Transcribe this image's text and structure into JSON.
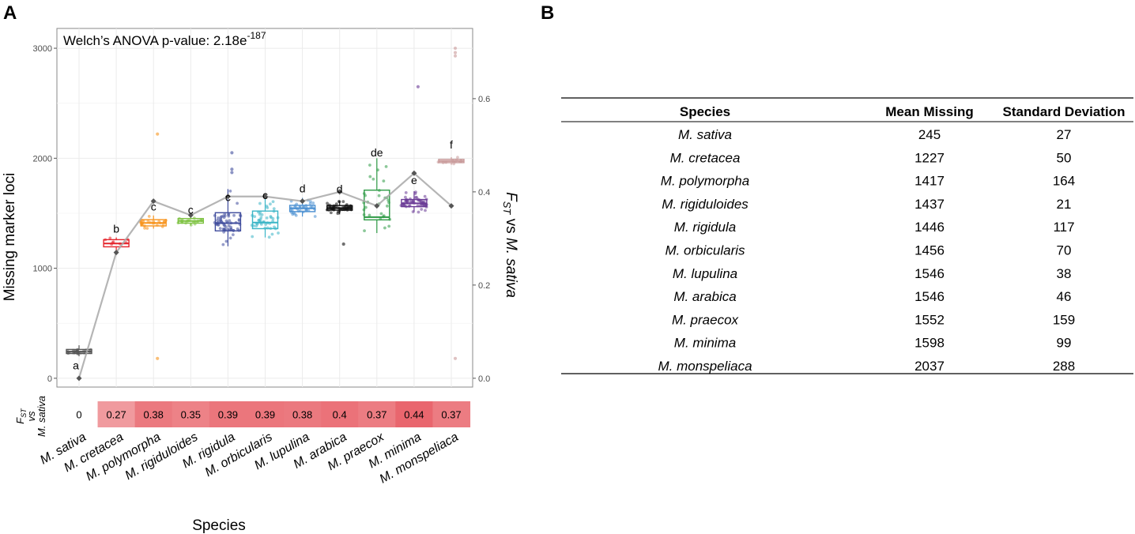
{
  "panel_a_label": "A",
  "panel_b_label": "B",
  "chart_data": [
    {
      "type": "box",
      "annotation_text": "Welch’s ANOVA p-value: 2.18e",
      "annotation_exponent": "-187",
      "xlabel": "Species",
      "ylabel": "Missing marker loci",
      "y2label_prefix": "F",
      "y2label_sub": "ST",
      "y2label_suffix": " vs ",
      "y2label_species": "M. sativa",
      "ylim": [
        -80,
        3180
      ],
      "y_ticks": [
        0,
        1000,
        2000,
        3000
      ],
      "y2lim": [
        -0.0189,
        0.7507
      ],
      "y2_ticks": [
        0.0,
        0.2,
        0.4,
        0.6
      ],
      "y2_tick_labels": [
        "0.0",
        "0.2",
        "0.4",
        "0.6"
      ],
      "grid": true,
      "categories": [
        "M. sativa",
        "M. cretacea",
        "M. polymorpha",
        "M. rigiduloides",
        "M. rigidula",
        "M. orbicularis",
        "M. lupulina",
        "M. arabica",
        "M. praecox",
        "M. minima",
        "M. monspeliaca"
      ],
      "colors": [
        "#555555",
        "#e4232a",
        "#f7941d",
        "#7ec242",
        "#3f4c9d",
        "#3ab5c6",
        "#4a8fd1",
        "#111111",
        "#2e9a45",
        "#6a3a96",
        "#c99a9a"
      ],
      "boxes": [
        {
          "q1": 225,
          "median": 242,
          "q3": 262,
          "lo": 200,
          "hi": 300
        },
        {
          "q1": 1195,
          "median": 1225,
          "q3": 1260,
          "lo": 1150,
          "hi": 1280
        },
        {
          "q1": 1385,
          "median": 1412,
          "q3": 1442,
          "lo": 1360,
          "hi": 1480
        },
        {
          "q1": 1410,
          "median": 1430,
          "q3": 1452,
          "lo": 1390,
          "hi": 1470
        },
        {
          "q1": 1340,
          "median": 1410,
          "q3": 1505,
          "lo": 1200,
          "hi": 1720
        },
        {
          "q1": 1360,
          "median": 1415,
          "q3": 1520,
          "lo": 1280,
          "hi": 1630
        },
        {
          "q1": 1515,
          "median": 1545,
          "q3": 1572,
          "lo": 1470,
          "hi": 1640
        },
        {
          "q1": 1528,
          "median": 1546,
          "q3": 1570,
          "lo": 1490,
          "hi": 1610
        },
        {
          "q1": 1440,
          "median": 1465,
          "q3": 1710,
          "lo": 1320,
          "hi": 2000
        },
        {
          "q1": 1560,
          "median": 1590,
          "q3": 1625,
          "lo": 1510,
          "hi": 1700
        },
        {
          "q1": 1960,
          "median": 1975,
          "q3": 1990,
          "lo": 1940,
          "hi": 2010
        }
      ],
      "point_counts": [
        25,
        8,
        25,
        20,
        60,
        45,
        35,
        55,
        30,
        55,
        12
      ],
      "outliers": [
        {
          "category": 2,
          "value": 2220
        },
        {
          "category": 2,
          "value": 180
        },
        {
          "category": 4,
          "value": 2050
        },
        {
          "category": 4,
          "value": 1900
        },
        {
          "category": 4,
          "value": 1870
        },
        {
          "category": 7,
          "value": 1220
        },
        {
          "category": 9,
          "value": 2650
        },
        {
          "category": 10,
          "value": 3000
        },
        {
          "category": 10,
          "value": 2960
        },
        {
          "category": 10,
          "value": 2930
        },
        {
          "category": 10,
          "value": 180
        }
      ],
      "significance_letters": [
        "a",
        "b",
        "c",
        "c",
        "c",
        "c",
        "d",
        "d",
        "de",
        "e",
        "f"
      ],
      "letter_values": [
        80,
        1325,
        1525,
        1495,
        1610,
        1630,
        1690,
        1685,
        2015,
        1765,
        2090
      ],
      "fst_line": [
        0.0,
        0.27,
        0.38,
        0.35,
        0.39,
        0.39,
        0.38,
        0.4,
        0.37,
        0.44,
        0.37
      ],
      "heatmap_title_prefix": "F",
      "heatmap_title_sub": "ST",
      "heatmap_title_mid": "vs",
      "heatmap_title_species": "M. sativa",
      "heatmap_values": [
        0,
        0.27,
        0.38,
        0.35,
        0.39,
        0.39,
        0.38,
        0.4,
        0.37,
        0.44,
        0.37
      ],
      "heatmap_labels": [
        "0",
        "0.27",
        "0.38",
        "0.35",
        "0.39",
        "0.39",
        "0.38",
        "0.4",
        "0.37",
        "0.44",
        "0.37"
      ]
    },
    {
      "type": "table",
      "columns": [
        "Species",
        "Mean Missing",
        "Standard Deviation"
      ],
      "rows": [
        [
          "M. sativa",
          "245",
          "27"
        ],
        [
          "M. cretacea",
          "1227",
          "50"
        ],
        [
          "M. polymorpha",
          "1417",
          "164"
        ],
        [
          "M. rigiduloides",
          "1437",
          "21"
        ],
        [
          "M. rigidula",
          "1446",
          "117"
        ],
        [
          "M. orbicularis",
          "1456",
          "70"
        ],
        [
          "M. lupulina",
          "1546",
          "38"
        ],
        [
          "M. arabica",
          "1546",
          "46"
        ],
        [
          "M. praecox",
          "1552",
          "159"
        ],
        [
          "M. minima",
          "1598",
          "99"
        ],
        [
          "M. monspeliaca",
          "2037",
          "288"
        ]
      ]
    }
  ]
}
